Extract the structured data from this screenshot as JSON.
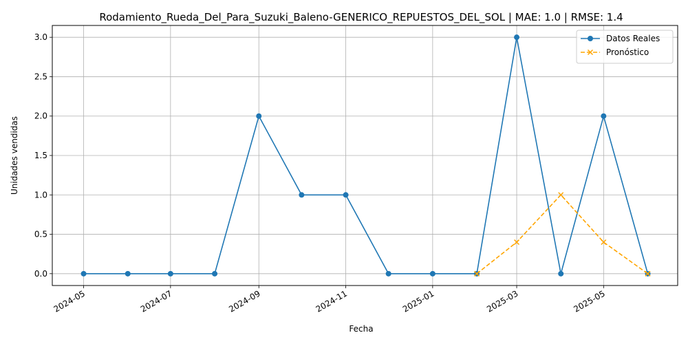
{
  "chart_data": {
    "type": "line",
    "title": "Rodamiento_Rueda_Del_Para_Suzuki_Baleno-GENERICO_REPUESTOS_DEL_SOL | MAE: 1.0 | RMSE: 1.4",
    "xlabel": "Fecha",
    "ylabel": "Unidades vendidas",
    "ylim": [
      -0.15,
      3.15
    ],
    "xlim": [
      "2024-04-09",
      "2025-06-22"
    ],
    "grid": true,
    "legend_position": "top-right",
    "x_ticks": [
      "2024-05",
      "2024-07",
      "2024-09",
      "2024-11",
      "2025-01",
      "2025-03",
      "2025-05"
    ],
    "y_ticks": [
      "0.0",
      "0.5",
      "1.0",
      "1.5",
      "2.0",
      "2.5",
      "3.0"
    ],
    "series": [
      {
        "name": "Datos Reales",
        "color": "#1f77b4",
        "style": "solid",
        "marker": "circle",
        "points": [
          {
            "x": "2024-05-01",
            "y": 0
          },
          {
            "x": "2024-06-01",
            "y": 0
          },
          {
            "x": "2024-07-01",
            "y": 0
          },
          {
            "x": "2024-08-01",
            "y": 0
          },
          {
            "x": "2024-09-01",
            "y": 2
          },
          {
            "x": "2024-10-01",
            "y": 1
          },
          {
            "x": "2024-11-01",
            "y": 1
          },
          {
            "x": "2024-12-01",
            "y": 0
          },
          {
            "x": "2025-01-01",
            "y": 0
          },
          {
            "x": "2025-02-01",
            "y": 0
          },
          {
            "x": "2025-03-01",
            "y": 3
          },
          {
            "x": "2025-04-01",
            "y": 0
          },
          {
            "x": "2025-05-01",
            "y": 2
          },
          {
            "x": "2025-06-01",
            "y": 0
          }
        ]
      },
      {
        "name": "Pronóstico",
        "color": "#ffa500",
        "style": "dashed",
        "marker": "x",
        "points": [
          {
            "x": "2025-02-01",
            "y": 0
          },
          {
            "x": "2025-03-01",
            "y": 0.4
          },
          {
            "x": "2025-04-01",
            "y": 1.0
          },
          {
            "x": "2025-05-01",
            "y": 0.4
          },
          {
            "x": "2025-06-01",
            "y": 0
          }
        ]
      }
    ]
  }
}
